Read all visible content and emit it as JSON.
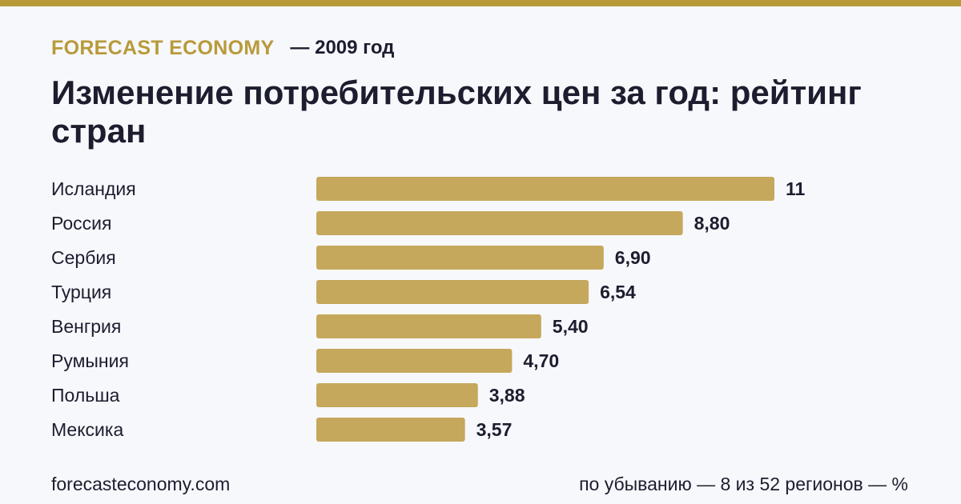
{
  "header": {
    "brand": "FORECAST ECONOMY",
    "period": "— 2009 год",
    "title": "Изменение потребительских цен за год: рейтинг стран"
  },
  "colors": {
    "accent": "#b89a3a",
    "bar": "#c6a85c",
    "text": "#1c1d2e",
    "background": "#f7f8fc"
  },
  "chart_data": {
    "type": "bar",
    "orientation": "horizontal",
    "categories": [
      "Исландия",
      "Россия",
      "Сербия",
      "Турция",
      "Венгрия",
      "Румыния",
      "Польша",
      "Мексика"
    ],
    "values": [
      11,
      8.8,
      6.9,
      6.54,
      5.4,
      4.7,
      3.88,
      3.57
    ],
    "value_labels": [
      "11",
      "8,80",
      "6,90",
      "6,54",
      "5,40",
      "4,70",
      "3,88",
      "3,57"
    ],
    "title": "Изменение потребительских цен за год: рейтинг стран",
    "sort": "descending",
    "grid": false,
    "legend": "none"
  },
  "footer": {
    "source": "forecasteconomy.com",
    "note": "по убыванию — 8 из 52 регионов — %"
  }
}
